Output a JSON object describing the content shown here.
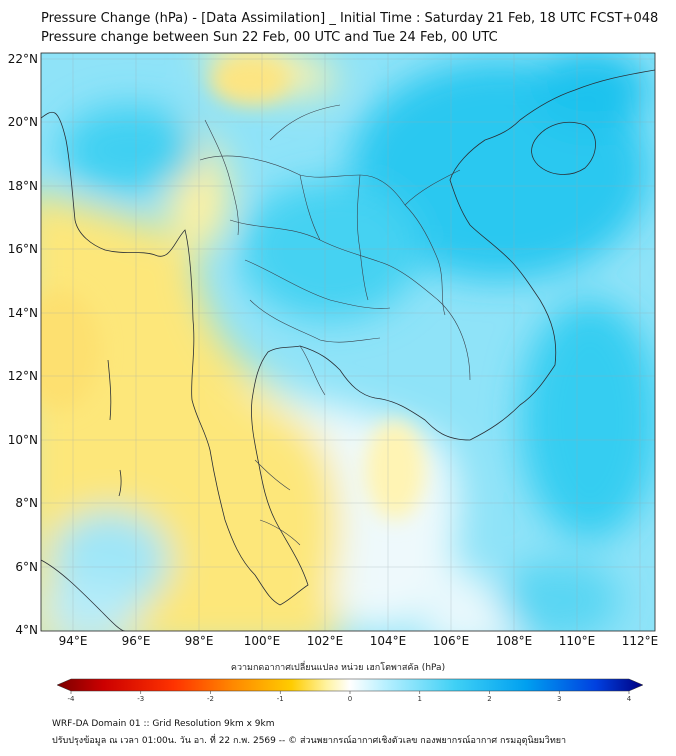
{
  "header": {
    "title_line1": "Pressure Change (hPa) - [Data Assimilation] _ Initial Time : Saturday 21 Feb, 18 UTC FCST+048",
    "title_line2": "Pressure change between Sun 22 Feb, 00 UTC and Tue 24 Feb, 00 UTC"
  },
  "map": {
    "lon_labels": [
      "94°E",
      "96°E",
      "98°E",
      "100°E",
      "102°E",
      "104°E",
      "106°E",
      "108°E",
      "110°E",
      "112°E"
    ],
    "lat_labels": [
      "22°N",
      "20°N",
      "18°N",
      "16°N",
      "14°N",
      "12°N",
      "10°N",
      "8°N",
      "6°N",
      "4°N"
    ],
    "lon_range": [
      93,
      112.5
    ],
    "lat_range": [
      4,
      22.2
    ],
    "field_colors": {
      "cyan_strong": "#19c3ee",
      "cyan": "#4fd3f2",
      "cyan_light": "#a6ecfb",
      "white": "#f6fbfd",
      "yellow_light": "#fff2a8",
      "yellow": "#fde77a"
    }
  },
  "colorbar": {
    "title": "ความกดอากาศเปลี่ยนแปลง หน่วย เฮกโตพาสคัล (hPa)",
    "ticks": [
      "-4",
      "-3",
      "-2",
      "-1",
      "0",
      "1",
      "2",
      "3",
      "4"
    ],
    "range": [
      -4,
      4
    ],
    "stops": [
      "#7a0000",
      "#cc0000",
      "#ff3300",
      "#ff8800",
      "#ffcc00",
      "#fff3a0",
      "#ffffff",
      "#b8f0ff",
      "#3fd0f5",
      "#00a0f0",
      "#0040e0",
      "#000080"
    ]
  },
  "footer": {
    "line1": "WRF-DA Domain 01 :: Grid Resolution 9km x 9km",
    "line2": "ปรับปรุงข้อมูล ณ เวลา 01:00น. วัน อา. ที่ 22 ก.พ. 2569 -- © ส่วนพยากรณ์อากาศเชิงตัวเลข กองพยากรณ์อากาศ กรมอุตุนิยมวิทยา"
  }
}
